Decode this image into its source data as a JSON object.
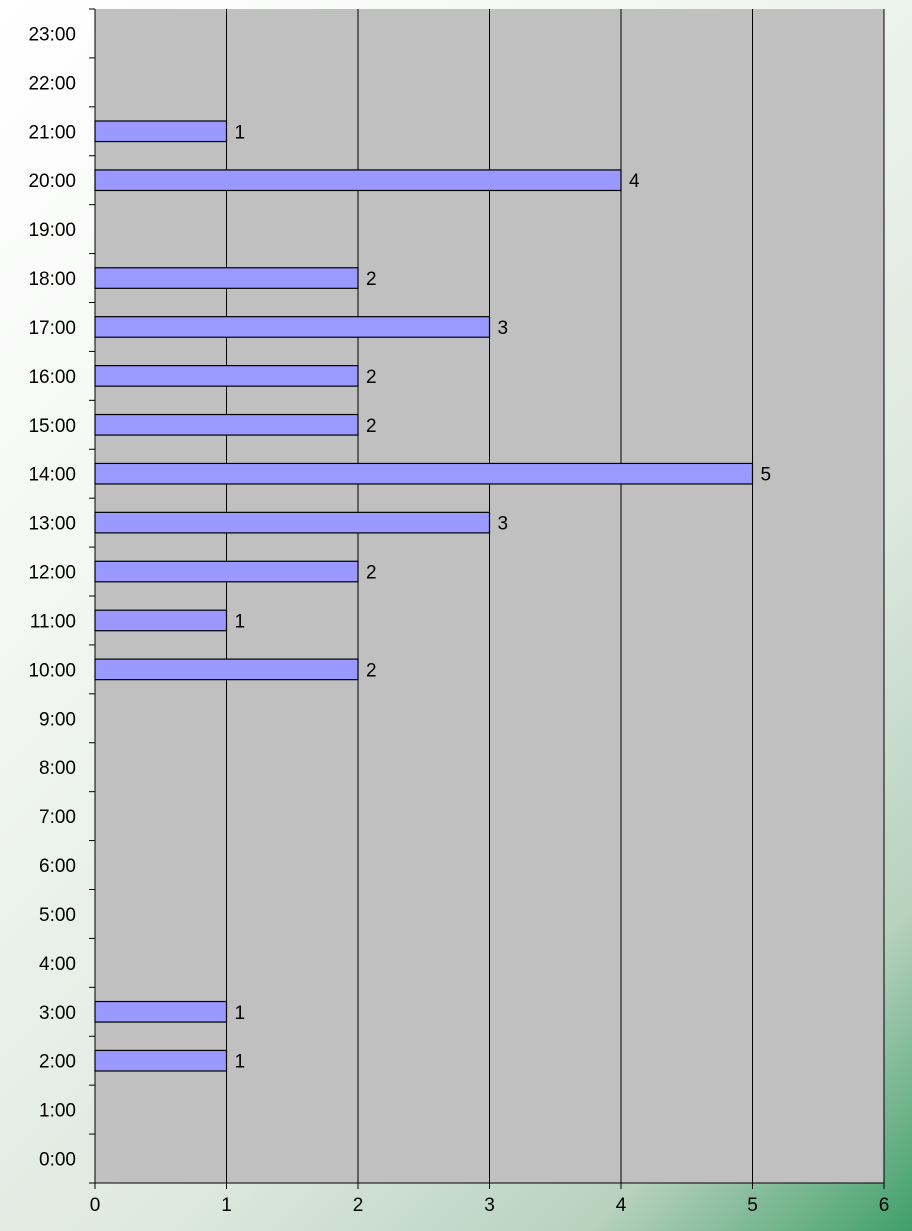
{
  "chart_data": {
    "type": "bar",
    "orientation": "horizontal",
    "categories": [
      "0:00",
      "1:00",
      "2:00",
      "3:00",
      "4:00",
      "5:00",
      "6:00",
      "7:00",
      "8:00",
      "9:00",
      "10:00",
      "11:00",
      "12:00",
      "13:00",
      "14:00",
      "15:00",
      "16:00",
      "17:00",
      "18:00",
      "19:00",
      "20:00",
      "21:00",
      "22:00",
      "23:00"
    ],
    "values": [
      0,
      0,
      1,
      1,
      0,
      0,
      0,
      0,
      0,
      0,
      2,
      1,
      2,
      3,
      5,
      2,
      2,
      3,
      2,
      0,
      4,
      1,
      0,
      0
    ],
    "xlim": [
      0,
      6
    ],
    "x_ticks": [
      "0",
      "1",
      "2",
      "3",
      "4",
      "5",
      "6"
    ],
    "title": "",
    "xlabel": "",
    "ylabel": "",
    "grid": "vertical",
    "legend": "none",
    "data_labels": true,
    "colors": {
      "plot_background": "#c0c0c0",
      "bar_fill": "#9999ff",
      "bar_stroke": "#000000",
      "grid": "#000000"
    }
  }
}
